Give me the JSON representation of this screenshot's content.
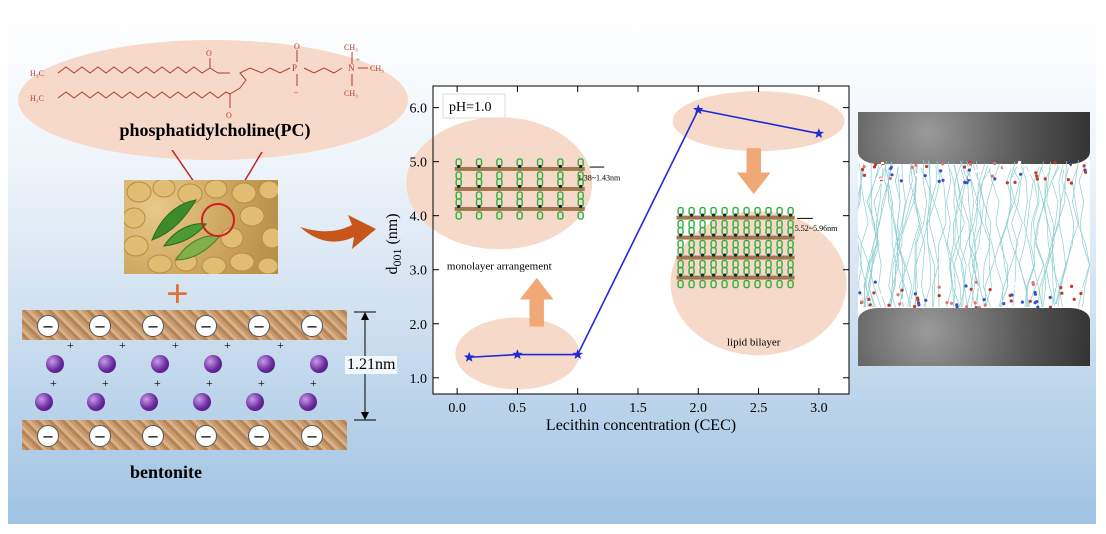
{
  "pc": {
    "label": "phosphatidylcholine(PC)",
    "formula": {
      "ch3_top": "H₃C",
      "ch3_bottom": "H₃C",
      "o": "O",
      "p": "P",
      "n": "N",
      "neg": "–",
      "pos": "+",
      "ch3": "CH₃"
    }
  },
  "bentonite": {
    "label": "bentonite",
    "spacing": "1.21nm",
    "neg": "–",
    "pos": "+"
  },
  "chart_data": {
    "type": "line",
    "x": [
      0.1,
      0.5,
      1.0,
      2.0,
      3.0
    ],
    "y": [
      1.38,
      1.43,
      1.43,
      5.96,
      5.52
    ],
    "xlabel": "Lecithin concentration (CEC)",
    "ylabel": "d001 (nm)",
    "ylabel_main": "d",
    "ylabel_sub": "001",
    "ylabel_unit": " (nm)",
    "xlim": [
      -0.2,
      3.25
    ],
    "ylim": [
      0.7,
      6.4
    ],
    "xticks": [
      "0.0",
      "0.5",
      "1.0",
      "1.5",
      "2.0",
      "2.5",
      "3.0"
    ],
    "yticks": [
      "1.0",
      "2.0",
      "3.0",
      "4.0",
      "5.0",
      "6.0"
    ],
    "condition": "pH=1.0",
    "color": "#1f2bd6",
    "annotations": {
      "monolayer": "monolayer arrangement",
      "monolayer_range": "1.38~1.43nm",
      "bilayer": "lipid bilayer",
      "bilayer_range": "5.52~5.96nm"
    }
  },
  "colors": {
    "accent_arrow": "#c8561a",
    "ellipse": "#f6d9c9",
    "pale_arrow": "#f0a877",
    "lipid_green": "#2fae3c",
    "lipid_head": "#11283a"
  }
}
